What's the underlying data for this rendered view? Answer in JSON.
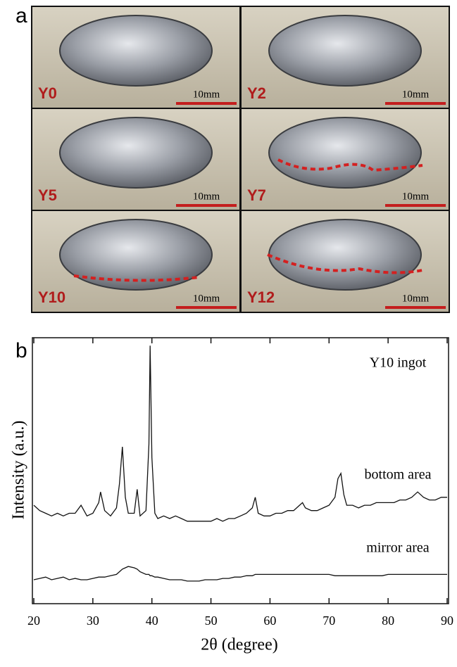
{
  "panel_a": {
    "label": "a",
    "photos": [
      {
        "sample": "Y0",
        "scale": "10mm"
      },
      {
        "sample": "Y2",
        "scale": "10mm"
      },
      {
        "sample": "Y5",
        "scale": "10mm"
      },
      {
        "sample": "Y7",
        "scale": "10mm"
      },
      {
        "sample": "Y10",
        "scale": "10mm"
      },
      {
        "sample": "Y12",
        "scale": "10mm"
      }
    ]
  },
  "chart_data": {
    "type": "line",
    "panel_label": "b",
    "title": "Y10 ingot",
    "xlabel": "2θ (degree)",
    "ylabel": "Intensity (a.u.)",
    "x": [
      20,
      21,
      22,
      23,
      24,
      25,
      26,
      27,
      28,
      29,
      30,
      31,
      31.3,
      32,
      33,
      34,
      34.5,
      35,
      35.5,
      36,
      37,
      37.5,
      38,
      39,
      39.5,
      39.7,
      40,
      40.5,
      41,
      42,
      43,
      44,
      45,
      46,
      47,
      48,
      49,
      50,
      51,
      52,
      53,
      54,
      55,
      56,
      57,
      57.5,
      58,
      59,
      60,
      61,
      62,
      63,
      64,
      65,
      65.5,
      66,
      67,
      68,
      69,
      70,
      71,
      71.5,
      72,
      72.5,
      73,
      74,
      75,
      76,
      77,
      78,
      79,
      80,
      81,
      82,
      83,
      84,
      85,
      86,
      87,
      88,
      89,
      90
    ],
    "series": [
      {
        "name": "bottom area",
        "color": "#111111",
        "values": [
          37,
          35,
          34,
          33,
          34,
          33,
          34,
          34,
          37,
          33,
          34,
          38,
          42,
          35,
          33,
          36,
          45,
          59,
          40,
          34,
          34,
          43,
          33,
          35,
          60,
          97,
          55,
          34,
          32,
          33,
          32,
          33,
          32,
          31,
          31,
          31,
          31,
          31,
          32,
          31,
          32,
          32,
          33,
          34,
          36,
          40,
          34,
          33,
          33,
          34,
          34,
          35,
          35,
          37,
          38,
          36,
          35,
          35,
          36,
          37,
          40,
          47,
          49,
          41,
          37,
          37,
          36,
          37,
          37,
          38,
          38,
          38,
          38,
          39,
          39,
          40,
          42,
          40,
          39,
          39,
          40,
          40
        ]
      },
      {
        "name": "mirror area",
        "color": "#111111",
        "values": [
          9,
          9.5,
          10,
          9,
          9.5,
          10,
          9,
          9.5,
          9,
          9,
          9.5,
          10,
          10,
          10,
          10.5,
          11,
          12,
          13,
          13.5,
          14,
          13.5,
          13,
          12,
          11,
          11,
          10.5,
          10.5,
          10,
          10,
          9.5,
          9,
          9,
          9,
          8.5,
          8.5,
          8.5,
          9,
          9,
          9,
          9.5,
          9.5,
          10,
          10,
          10.5,
          10.5,
          11,
          11,
          11,
          11,
          11,
          11,
          11,
          11,
          11,
          11,
          11,
          11,
          11,
          11,
          11,
          10.5,
          10.5,
          10.5,
          10.5,
          10.5,
          10.5,
          10.5,
          10.5,
          10.5,
          10.5,
          10.5,
          11,
          11,
          11,
          11,
          11,
          11,
          11,
          11,
          11,
          11,
          11
        ]
      }
    ],
    "xlim": [
      20,
      90
    ],
    "xticks": [
      20,
      30,
      40,
      50,
      60,
      70,
      80,
      90
    ],
    "ylim": [
      0,
      100
    ]
  }
}
